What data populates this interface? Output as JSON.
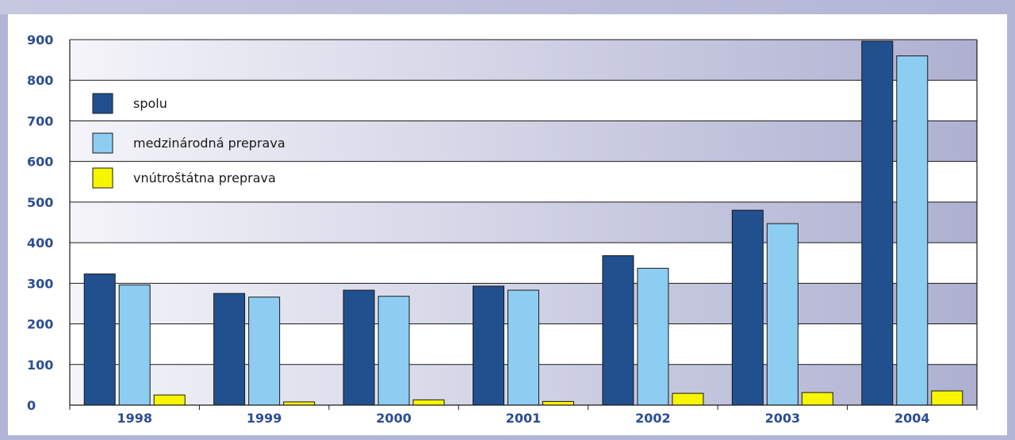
{
  "chart_data": {
    "type": "bar",
    "categories": [
      "1998",
      "1999",
      "2000",
      "2001",
      "2002",
      "2003",
      "2004"
    ],
    "series": [
      {
        "name": "spolu",
        "color": "#21508f",
        "values": [
          323,
          275,
          283,
          293,
          368,
          480,
          896
        ]
      },
      {
        "name": "medzinárodná preprava",
        "color": "#8dcdf2",
        "values": [
          296,
          266,
          268,
          283,
          337,
          447,
          860
        ]
      },
      {
        "name": "vnútroštátna preprava",
        "color": "#f7f500",
        "values": [
          25,
          8,
          13,
          9,
          29,
          31,
          35
        ]
      }
    ],
    "y_ticks": [
      "0",
      "100",
      "200",
      "300",
      "400",
      "500",
      "600",
      "700",
      "800",
      "900"
    ],
    "ylim": [
      0,
      900
    ],
    "grid": true,
    "legend_position": "top-left",
    "colors": {
      "band_light": "#ffffff",
      "band_gradient_start": "#f4f4f9",
      "band_gradient_end": "#aeb0d1",
      "axis": "#1a1a1a",
      "tick_text": "#2c4d93",
      "frame": "#b3b5d6"
    }
  }
}
